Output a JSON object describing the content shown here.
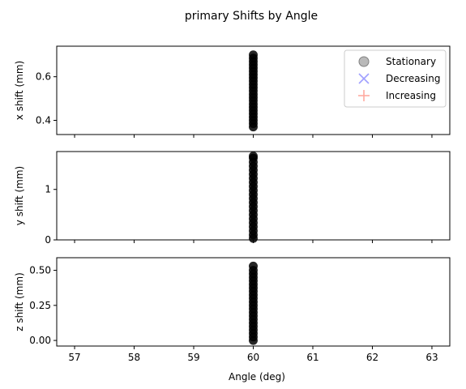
{
  "chart_data": {
    "type": "scatter",
    "title": "primary Shifts by Angle",
    "xlabel": "Angle (deg)",
    "xlim": [
      56.7,
      63.3
    ],
    "xticks": [
      57,
      58,
      59,
      60,
      61,
      62,
      63
    ],
    "xtick_labels": [
      "57",
      "58",
      "59",
      "60",
      "61",
      "62",
      "63"
    ],
    "legend": {
      "placement": "upper-right of top panel",
      "entries": [
        {
          "label": "Stationary",
          "marker": "circle",
          "color": "#808080"
        },
        {
          "label": "Decreasing",
          "marker": "x",
          "color": "#a0a0ff"
        },
        {
          "label": "Increasing",
          "marker": "plus",
          "color": "#ffaaa0"
        }
      ]
    },
    "panels": [
      {
        "ylabel": "x shift (mm)",
        "ylim": [
          0.335,
          0.74
        ],
        "yticks": [
          0.4,
          0.6
        ],
        "ytick_labels": [
          "0.4",
          "0.6"
        ],
        "series": [
          {
            "name": "Stationary",
            "x": 60,
            "y": [
              0.37,
              0.385,
              0.4,
              0.415,
              0.43,
              0.445,
              0.46,
              0.475,
              0.49,
              0.505,
              0.52,
              0.535,
              0.55,
              0.565,
              0.58,
              0.595,
              0.61,
              0.625,
              0.64,
              0.655,
              0.67,
              0.685,
              0.7
            ]
          }
        ]
      },
      {
        "ylabel": "y shift (mm)",
        "ylim": [
          0,
          1.75
        ],
        "yticks": [
          0,
          1
        ],
        "ytick_labels": [
          "0",
          "1"
        ],
        "series": [
          {
            "name": "Stationary",
            "x": 60,
            "y": [
              0.03,
              0.1,
              0.18,
              0.26,
              0.34,
              0.42,
              0.5,
              0.58,
              0.66,
              0.74,
              0.82,
              0.9,
              0.98,
              1.06,
              1.14,
              1.22,
              1.3,
              1.38,
              1.46,
              1.54,
              1.62,
              1.66
            ]
          }
        ]
      },
      {
        "ylabel": "z shift (mm)",
        "ylim": [
          -0.04,
          0.59
        ],
        "yticks": [
          0.0,
          0.25,
          0.5
        ],
        "ytick_labels": [
          "0.00",
          "0.25",
          "0.50"
        ],
        "series": [
          {
            "name": "Stationary",
            "x": 60,
            "y": [
              0.0,
              0.025,
              0.05,
              0.075,
              0.1,
              0.125,
              0.15,
              0.175,
              0.2,
              0.225,
              0.25,
              0.275,
              0.3,
              0.325,
              0.35,
              0.375,
              0.4,
              0.425,
              0.45,
              0.475,
              0.5,
              0.53
            ]
          }
        ]
      }
    ]
  },
  "colors": {
    "marker_fill": "#000000",
    "legend_border": "#cccccc"
  }
}
